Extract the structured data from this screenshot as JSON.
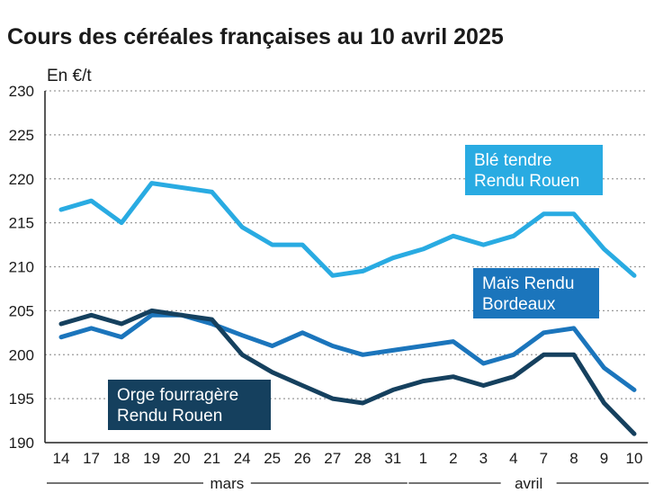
{
  "colors": {
    "ble": "#29abe2",
    "mais": "#1b75bc",
    "orge": "#15405e",
    "grid": "#9a9a9a"
  },
  "chart_data": {
    "type": "line",
    "title": "Cours des céréales françaises au 10 avril 2025",
    "ylabel": "En €/t",
    "ylim": [
      190,
      230
    ],
    "yticks": [
      190,
      195,
      200,
      205,
      210,
      215,
      220,
      225,
      230
    ],
    "categories": [
      "14",
      "17",
      "18",
      "19",
      "20",
      "21",
      "24",
      "25",
      "26",
      "27",
      "28",
      "31",
      "1",
      "2",
      "3",
      "4",
      "7",
      "8",
      "9",
      "10"
    ],
    "month_groups": [
      {
        "label": "mars",
        "start": 0,
        "end": 11
      },
      {
        "label": "avril",
        "start": 12,
        "end": 19
      }
    ],
    "series": [
      {
        "name": "Blé tendre Rendu Rouen",
        "label_lines": [
          "Blé tendre",
          "Rendu Rouen"
        ],
        "color": "#29abe2",
        "values": [
          216.5,
          217.5,
          215,
          219.5,
          219,
          218.5,
          214.5,
          212.5,
          212.5,
          209,
          209.5,
          211,
          212,
          213.5,
          212.5,
          213.5,
          216,
          216,
          212,
          209
        ]
      },
      {
        "name": "Maïs Rendu Bordeaux",
        "label_lines": [
          "Maïs Rendu",
          "Bordeaux"
        ],
        "color": "#1b75bc",
        "values": [
          202,
          203,
          202,
          204.5,
          204.5,
          203.5,
          202.2,
          201,
          202.5,
          201,
          200,
          200.5,
          201,
          201.5,
          199,
          200,
          202.5,
          203,
          198.5,
          196
        ]
      },
      {
        "name": "Orge fourragère Rendu Rouen",
        "label_lines": [
          "Orge fourragère",
          "Rendu Rouen"
        ],
        "color": "#15405e",
        "values": [
          203.5,
          204.5,
          203.5,
          205,
          204.5,
          204,
          200,
          198,
          196.5,
          195,
          194.5,
          196,
          197,
          197.5,
          196.5,
          197.5,
          200,
          200,
          194.5,
          191
        ]
      }
    ]
  }
}
